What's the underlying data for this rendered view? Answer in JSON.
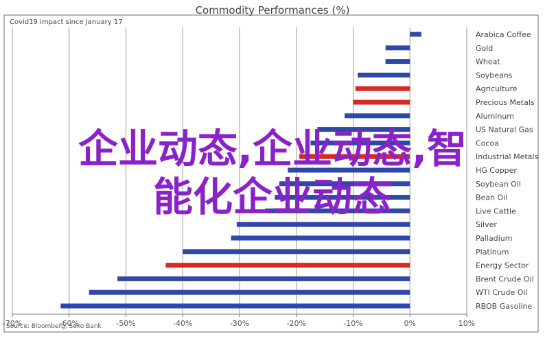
{
  "watermark": {
    "line1": "企业动态,企业动态,智",
    "line2": "能化企业动态"
  },
  "chart_data": {
    "type": "bar",
    "orientation": "horizontal",
    "title": "Commodity Performances (%)",
    "subtitle": "Covid19 impact since January 17",
    "source": "Source: Bloomberg, Saxo Bank",
    "xlim": [
      -70,
      10
    ],
    "xticks": [
      "-70%",
      "-60%",
      "-50%",
      "-40%",
      "-30%",
      "-20%",
      "-10%",
      "0%",
      "10%"
    ],
    "grid": true,
    "colors": {
      "default": "#2e47a8",
      "highlight": "#d62a22"
    },
    "categories": [
      "Arabica Coffee",
      "Gold",
      "Wheat",
      "Soybeans",
      "Agriculture",
      "Precious Metals",
      "Aluminum",
      "US Natural Gas",
      "Cocoa",
      "Industrial Metals",
      "HG Copper",
      "Soybean Oil",
      "Bean Oil",
      "Live Cattle",
      "Silver",
      "Palladium",
      "Platinum",
      "Energy Sector",
      "Brent Crude Oil",
      "WTI Crude Oil",
      "RBOB Gasoline"
    ],
    "values": [
      2,
      -4.3,
      -4.3,
      -9.2,
      -9.6,
      -10,
      -11.5,
      -16.3,
      -17.5,
      -19.5,
      -21.5,
      -23,
      -23.8,
      -25.5,
      -30.5,
      -31.5,
      -40,
      -43,
      -51.5,
      -56.5,
      -61.5
    ],
    "highlight": [
      false,
      false,
      false,
      false,
      true,
      true,
      false,
      false,
      false,
      true,
      false,
      false,
      false,
      false,
      false,
      false,
      false,
      true,
      false,
      false,
      false
    ]
  }
}
